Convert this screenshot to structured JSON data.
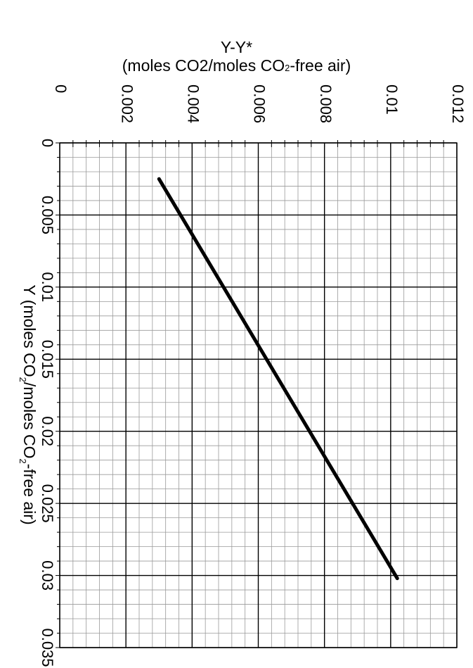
{
  "chart_data": {
    "type": "line",
    "title_line1": "Y-Y*",
    "title_line2_pre": "(moles CO2/moles CO",
    "title_line2_sub": "2",
    "title_line2_post": "-free air)",
    "ylabel_pre": "Y (moles CO",
    "ylabel_sub1": "2",
    "ylabel_mid": "/moles CO",
    "ylabel_sub2": "2",
    "ylabel_post": "-free air)",
    "top_ticks": [
      "0",
      "0.002",
      "0.004",
      "0.006",
      "0.008",
      "0.01",
      "0.012"
    ],
    "top_tick_values": [
      0,
      0.002,
      0.004,
      0.006,
      0.008,
      0.01,
      0.012
    ],
    "left_ticks": [
      "0",
      "0.005",
      "0.01",
      "0.015",
      "0.02",
      "0.025",
      "0.03",
      "0.035"
    ],
    "left_tick_values": [
      0,
      0.005,
      0.01,
      0.015,
      0.02,
      0.025,
      0.03,
      0.035
    ],
    "y_range": [
      0,
      0.035
    ],
    "y_minus_ystar_range": [
      0,
      0.012
    ],
    "y_minor_step": 0.001,
    "y_minus_ystar_minor_step": 0.0004,
    "grid": true,
    "series": [
      {
        "x": [
          0.0025,
          0.0302
        ],
        "y": [
          0.003,
          0.0102
        ]
      }
    ]
  }
}
